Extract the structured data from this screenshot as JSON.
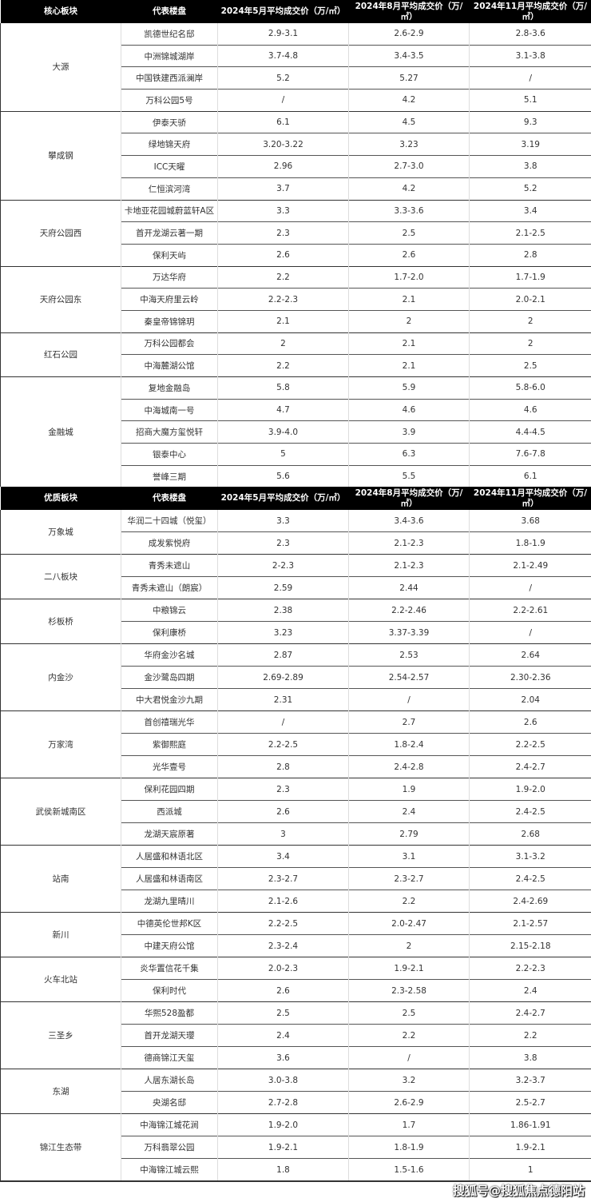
{
  "tables": [
    {
      "headers": [
        "核心板块",
        "代表楼盘",
        "2024年5月平均成交价（万/㎡）",
        "2024年8月平均成交价（万/㎡）",
        "2024年11月平均成交价（万/㎡）"
      ],
      "groups": [
        {
          "block": "大源",
          "rows": [
            [
              "凯德世纪名邸",
              "2.9-3.1",
              "2.6-2.9",
              "2.8-3.6"
            ],
            [
              "中洲锦城湖岸",
              "3.7-4.8",
              "3.4-3.5",
              "3.1-3.8"
            ],
            [
              "中国铁建西派澜岸",
              "5.2",
              "5.27",
              "/"
            ],
            [
              "万科公园5号",
              "/",
              "4.2",
              "5.1"
            ]
          ]
        },
        {
          "block": "攀成钢",
          "rows": [
            [
              "伊泰天骄",
              "6.1",
              "4.5",
              "9.3"
            ],
            [
              "绿地锦天府",
              "3.20-3.22",
              "3.23",
              "3.19"
            ],
            [
              "ICC天曜",
              "2.96",
              "2.7-3.0",
              "3.8"
            ],
            [
              "仁恒滨河湾",
              "3.7",
              "4.2",
              "5.2"
            ]
          ]
        },
        {
          "block": "天府公园西",
          "rows": [
            [
              "卡地亚花园城蔚蓝轩A区",
              "3.3",
              "3.3-3.6",
              "3.4"
            ],
            [
              "首开龙湖云著一期",
              "2.3",
              "2.5",
              "2.1-2.5"
            ],
            [
              "保利天屿",
              "2.6",
              "2.6",
              "2.8"
            ]
          ]
        },
        {
          "block": "天府公园东",
          "rows": [
            [
              "万达华府",
              "2.2",
              "1.7-2.0",
              "1.7-1.9"
            ],
            [
              "中海天府里云岭",
              "2.2-2.3",
              "2.1",
              "2.0-2.1"
            ],
            [
              "秦皇帝锦锦玥",
              "2.1",
              "2",
              "2"
            ]
          ]
        },
        {
          "block": "红石公园",
          "rows": [
            [
              "万科公园都会",
              "2",
              "2.1",
              "2"
            ],
            [
              "中海麓湖公馆",
              "2.2",
              "2.1",
              "2.5"
            ]
          ]
        },
        {
          "block": "金融城",
          "rows": [
            [
              "复地金融岛",
              "5.8",
              "5.9",
              "5.8-6.0"
            ],
            [
              "中海城南一号",
              "4.7",
              "4.6",
              "4.6"
            ],
            [
              "招商大魔方玺悦轩",
              "3.9-4.0",
              "3.9",
              "4.4-4.5"
            ],
            [
              "银泰中心",
              "5",
              "6.3",
              "7.6-7.8"
            ],
            [
              "誉峰三期",
              "5.6",
              "5.5",
              "6.1"
            ]
          ]
        }
      ]
    },
    {
      "headers": [
        "优质板块",
        "代表楼盘",
        "2024年5月平均成交价（万/㎡）",
        "2024年8月平均成交价（万/㎡）",
        "2024年11月平均成交价（万/㎡）"
      ],
      "groups": [
        {
          "block": "万象城",
          "rows": [
            [
              "华润二十四城（悦玺）",
              "3.3",
              "3.4-3.6",
              "3.68"
            ],
            [
              "成发紫悦府",
              "2.3",
              "2.1-2.3",
              "1.8-1.9"
            ]
          ]
        },
        {
          "block": "二八板块",
          "rows": [
            [
              "青秀未遮山",
              "2-2.3",
              "2.1-2.3",
              "2.1-2.49"
            ],
            [
              "青秀未遮山（朗宸）",
              "2.59",
              "2.44",
              "/"
            ]
          ]
        },
        {
          "block": "杉板桥",
          "rows": [
            [
              "中粮锦云",
              "2.38",
              "2.2-2.46",
              "2.2-2.61"
            ],
            [
              "保利康桥",
              "3.23",
              "3.37-3.39",
              "/"
            ]
          ]
        },
        {
          "block": "内金沙",
          "rows": [
            [
              "华府金沙名城",
              "2.87",
              "2.53",
              "2.64"
            ],
            [
              "金沙鹭岛四期",
              "2.69-2.89",
              "2.54-2.57",
              "2.30-2.36"
            ],
            [
              "中大君悦金沙九期",
              "2.31",
              "/",
              "2.04"
            ]
          ]
        },
        {
          "block": "万家湾",
          "rows": [
            [
              "首创禧瑞光华",
              "/",
              "2.7",
              "2.6"
            ],
            [
              "紫御熙庭",
              "2.2-2.5",
              "1.8-2.4",
              "2.2-2.5"
            ],
            [
              "光华壹号",
              "2.8",
              "2.4-2.8",
              "2.4-2.7"
            ]
          ]
        },
        {
          "block": "武侯新城南区",
          "rows": [
            [
              "保利花园四期",
              "2.3",
              "1.9",
              "1.9-2.0"
            ],
            [
              "西派城",
              "2.6",
              "2.4",
              "2.4-2.5"
            ],
            [
              "龙湖天宸原著",
              "3",
              "2.79",
              "2.68"
            ]
          ]
        },
        {
          "block": "站南",
          "rows": [
            [
              "人居盛和林语北区",
              "3.4",
              "3.1",
              "3.1-3.2"
            ],
            [
              "人居盛和林语南区",
              "2.3-2.7",
              "2.3-2.7",
              "2.4-2.5"
            ],
            [
              "龙湖九里晴川",
              "2.1-2.6",
              "2.2",
              "2.4-2.69"
            ]
          ]
        },
        {
          "block": "新川",
          "rows": [
            [
              "中德英伦世邦K区",
              "2.2-2.5",
              "2.0-2.47",
              "2.1-2.57"
            ],
            [
              "中建天府公馆",
              "2.3-2.4",
              "2",
              "2.15-2.18"
            ]
          ]
        },
        {
          "block": "火车北站",
          "rows": [
            [
              "炎华置信花千集",
              "2.0-2.3",
              "1.9-2.1",
              "2.2-2.3"
            ],
            [
              "保利时代",
              "2.6",
              "2.3-2.58",
              "2.4"
            ]
          ]
        },
        {
          "block": "三圣乡",
          "rows": [
            [
              "华熙528盈都",
              "2.5",
              "2.5",
              "2.4-2.7"
            ],
            [
              "首开龙湖天瓔",
              "2.4",
              "2.2",
              "2.2"
            ],
            [
              "德商锦江天玺",
              "3.6",
              "/",
              "3.8"
            ]
          ]
        },
        {
          "block": "东湖",
          "rows": [
            [
              "人居东湖长岛",
              "3.0-3.8",
              "3.2",
              "3.2-3.7"
            ],
            [
              "央湖名邸",
              "2.7-2.8",
              "2.6-2.9",
              "2.5-2.7"
            ]
          ]
        },
        {
          "block": "锦江生态带",
          "rows": [
            [
              "中海锦江城花涧",
              "1.9-2.0",
              "1.7",
              "1.86-1.91"
            ],
            [
              "万科翡翠公园",
              "1.9-2.1",
              "1.8-1.9",
              "1.9-2.1"
            ],
            [
              "中海锦江城云熙",
              "1.8",
              "1.5-1.6",
              "1"
            ]
          ]
        }
      ]
    }
  ],
  "watermark": "搜狐号@搜狐焦点德阳站"
}
